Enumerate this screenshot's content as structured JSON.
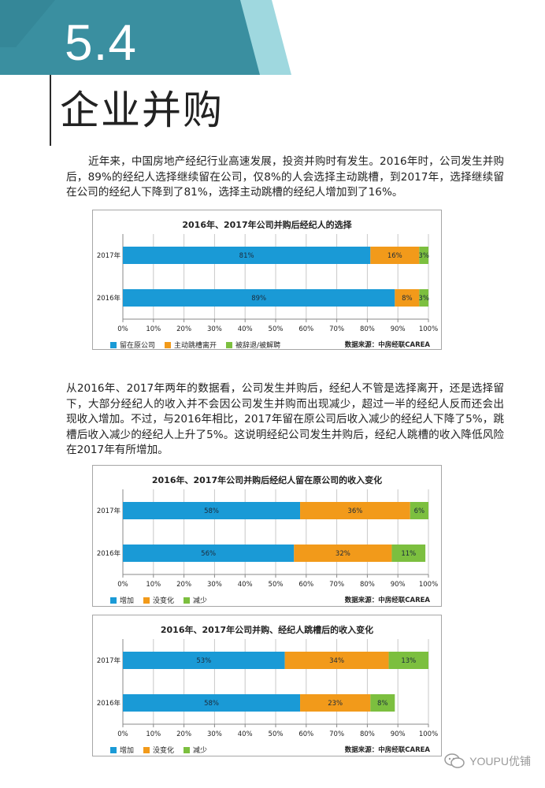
{
  "header": {
    "section_number": "5.4",
    "title": "企业并购"
  },
  "paragraphs": [
    "近年来，中国房地产经纪行业高速发展，投资并购时有发生。2016年时，公司发生并购后，89%的经纪人选择继续留在公司，仅8%的人会选择主动跳槽，到2017年，选择继续留在公司的经纪人下降到了81%，选择主动跳槽的经纪人增加到了16%。",
    "从2016年、2017年两年的数据看，公司发生并购后，经纪人不管是选择离开，还是选择留下，大部分经纪人的收入并不会因公司发生并购而出现减少，超过一半的经纪人反而还会出现收入增加。不过，与2016年相比，2017年留在原公司后收入减少的经纪人下降了5%，跳槽后收入减少的经纪人上升了5%。这说明经纪公司发生并购后，经纪人跳槽的收入降低风险在2017年有所增加。"
  ],
  "chart_data": [
    {
      "type": "bar",
      "orientation": "horizontal",
      "stacked": true,
      "title": "2016年、2017年公司并购后经纪人的选择",
      "categories": [
        "2017年",
        "2016年"
      ],
      "series": [
        {
          "name": "留在原公司",
          "values": [
            81,
            89
          ],
          "labels": [
            "81%",
            "89%"
          ],
          "color": "#1a9ad6"
        },
        {
          "name": "主动跳槽离开",
          "values": [
            16,
            8
          ],
          "labels": [
            "16%",
            "8%"
          ],
          "color": "#f29a1a"
        },
        {
          "name": "被辞退/被解聘",
          "values": [
            3,
            3
          ],
          "labels": [
            "3%",
            "3%"
          ],
          "color": "#7cbf3f"
        }
      ],
      "xlim": [
        0,
        100
      ],
      "xticks": [
        "0%",
        "10%",
        "20%",
        "30%",
        "40%",
        "50%",
        "60%",
        "70%",
        "80%",
        "90%",
        "100%"
      ],
      "grid": true,
      "legend_position": "bottom-left",
      "source": "数据来源：中房经联CAREA"
    },
    {
      "type": "bar",
      "orientation": "horizontal",
      "stacked": true,
      "title": "2016年、2017年公司并购后经纪人留在原公司的收入变化",
      "categories": [
        "2017年",
        "2016年"
      ],
      "series": [
        {
          "name": "增加",
          "values": [
            58,
            56
          ],
          "labels": [
            "58%",
            "56%"
          ],
          "color": "#1a9ad6"
        },
        {
          "name": "没变化",
          "values": [
            36,
            32
          ],
          "labels": [
            "36%",
            "32%"
          ],
          "color": "#f29a1a"
        },
        {
          "name": "减少",
          "values": [
            6,
            11
          ],
          "labels": [
            "6%",
            "11%"
          ],
          "color": "#7cbf3f"
        }
      ],
      "xlim": [
        0,
        100
      ],
      "xticks": [
        "0%",
        "10%",
        "20%",
        "30%",
        "40%",
        "50%",
        "60%",
        "70%",
        "80%",
        "90%",
        "100%"
      ],
      "grid": true,
      "legend_position": "bottom-left",
      "source": "数据来源：中房经联CAREA"
    },
    {
      "type": "bar",
      "orientation": "horizontal",
      "stacked": true,
      "title": "2016年、2017年公司并购、经纪人跳槽后的收入变化",
      "categories": [
        "2017年",
        "2016年"
      ],
      "series": [
        {
          "name": "增加",
          "values": [
            53,
            58
          ],
          "labels": [
            "53%",
            "58%"
          ],
          "color": "#1a9ad6"
        },
        {
          "name": "没变化",
          "values": [
            34,
            23
          ],
          "labels": [
            "34%",
            "23%"
          ],
          "color": "#f29a1a"
        },
        {
          "name": "减少",
          "values": [
            13,
            8
          ],
          "labels": [
            "13%",
            "8%"
          ],
          "color": "#7cbf3f"
        }
      ],
      "xlim": [
        0,
        100
      ],
      "xticks": [
        "0%",
        "10%",
        "20%",
        "30%",
        "40%",
        "50%",
        "60%",
        "70%",
        "80%",
        "90%",
        "100%"
      ],
      "grid": true,
      "legend_position": "bottom-left",
      "source": "数据来源：中房经联CAREA"
    }
  ],
  "colors": {
    "banner_dark": "#3a8fa0",
    "banner_light": "#9fd8df",
    "grid": "#bfbfbf"
  },
  "watermark": {
    "text": "YOUPU优铺",
    "icon": "wechat-icon"
  }
}
